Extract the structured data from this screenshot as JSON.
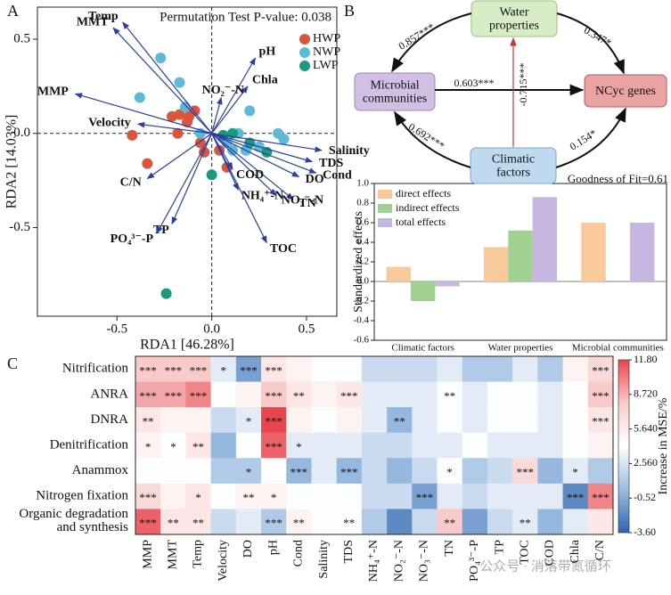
{
  "panel_labels": [
    "A",
    "B",
    "C"
  ],
  "watermark": "公众号 · 消落带氮循环",
  "diagram": {
    "nodes": [
      {
        "label": "Water properties",
        "color": "#d9ecc8",
        "stroke": "#9cbf80"
      },
      {
        "label": "Microbial communities",
        "color": "#d2bfe4",
        "stroke": "#9e86bd"
      },
      {
        "label": "NCyc genes",
        "color": "#e9a3a3",
        "stroke": "#b35e5e"
      },
      {
        "label": "Climatic factors",
        "color": "#bfd9ef",
        "stroke": "#7ea7cc"
      }
    ],
    "edges": [
      {
        "label": "0.857***",
        "color": "#111111"
      },
      {
        "label": "0.347*",
        "color": "#111111"
      },
      {
        "label": "0.603***",
        "color": "#111111"
      },
      {
        "label": "-0.715***",
        "color": "#c0392b"
      },
      {
        "label": "0.692***",
        "color": "#111111"
      },
      {
        "label": "0.154*",
        "color": "#111111"
      }
    ]
  },
  "chart_data": [
    {
      "type": "biplot",
      "title": "Permutation Test P-value: 0.038",
      "x_label": "RDA1 [46.28%]",
      "y_label": "RDA2 [14.03%]",
      "xlim": [
        -0.92,
        0.66
      ],
      "ylim": [
        -0.97,
        0.67
      ],
      "xticks": [
        -0.5,
        {
          "value": 0,
          "label": "0.0"
        },
        0.5
      ],
      "yticks": [
        -0.5,
        {
          "value": 0,
          "label": "0.0"
        },
        0.5
      ],
      "zero_lines": true,
      "legend": "top-right",
      "series": [
        {
          "name": "HWP",
          "color": "#d9553c",
          "x": [
            -0.42,
            -0.34,
            -0.21,
            -0.17,
            -0.13,
            -0.18,
            -0.12,
            -0.09,
            -0.06,
            -0.04,
            0.04,
            0.08
          ],
          "y": [
            -0.01,
            -0.16,
            0.09,
            0.1,
            0.06,
            0.0,
            0.09,
            0.12,
            -0.05,
            -0.1,
            -0.09,
            -0.18
          ]
        },
        {
          "name": "NWP",
          "color": "#5cbad6",
          "x": [
            -0.27,
            -0.17,
            -0.38,
            -0.14,
            -0.06,
            0.08,
            0.14,
            0.18,
            0.25,
            0.35,
            0.38,
            0.2,
            0.11
          ],
          "y": [
            0.4,
            0.27,
            0.19,
            0.14,
            0.0,
            -0.05,
            0.0,
            -0.09,
            -0.07,
            0.0,
            -0.03,
            0.12,
            -0.09
          ]
        },
        {
          "name": "LWP",
          "color": "#1a9a7c",
          "x": [
            -0.24,
            0.0,
            0.29,
            0.2,
            0.11,
            0.06
          ],
          "y": [
            -0.85,
            -0.22,
            -0.1,
            -0.05,
            0.0,
            -0.01
          ]
        }
      ],
      "vectors": {
        "color": "#2b3ea8",
        "labels": [
          "Temp",
          "MMT",
          "MMP",
          "Velocity",
          "pH",
          "Chla",
          "NO₂⁻-N",
          "Salinity",
          "TDS",
          "Cond",
          "DO",
          "TN",
          "NO₃⁻-N",
          "NH₄⁺-N",
          "COD",
          "TOC",
          "C/N",
          "TP",
          "PO₄³⁻-P"
        ],
        "x": [
          -0.47,
          -0.52,
          -0.72,
          -0.39,
          0.23,
          0.19,
          0.05,
          0.58,
          0.53,
          0.55,
          0.46,
          0.43,
          0.34,
          0.14,
          0.11,
          0.29,
          -0.34,
          -0.21,
          -0.29
        ],
        "y": [
          0.59,
          0.56,
          0.21,
          0.05,
          0.4,
          0.25,
          0.19,
          -0.09,
          -0.15,
          -0.21,
          -0.23,
          -0.35,
          -0.33,
          -0.3,
          -0.19,
          -0.58,
          -0.24,
          -0.48,
          -0.53
        ]
      }
    },
    {
      "type": "bar",
      "title": "Goodness of Fit=0.61",
      "y_label": "Standardized effects",
      "categories": [
        "Climatic factors",
        "Water properties",
        "Microbial communities"
      ],
      "series": [
        {
          "name": "direct effects",
          "color": "#f9c99c",
          "values": [
            0.15,
            0.35,
            0.6
          ]
        },
        {
          "name": "indirect effects",
          "color": "#a0d191",
          "values": [
            -0.2,
            0.52,
            null
          ]
        },
        {
          "name": "total effects",
          "color": "#c6b6e1",
          "values": [
            -0.05,
            0.86,
            0.6
          ]
        }
      ],
      "ylim": [
        -0.6,
        1.0
      ],
      "yticks": [
        -0.6,
        -0.4,
        -0.2,
        {
          "value": 0,
          "label": "0.0"
        },
        0.2,
        0.4,
        0.6,
        0.8,
        {
          "value": 1.0,
          "label": "1.0"
        }
      ],
      "zero_line": true,
      "legend": "top-left"
    },
    {
      "type": "heatmap",
      "rows": [
        "Nitrification",
        "ANRA",
        "DNRA",
        "Denitrification",
        "Anammox",
        "Nitrogen fixation",
        "Organic degradation and synthesis"
      ],
      "columns": [
        "MMP",
        "MMT",
        "Temp",
        "Velocity",
        "DO",
        "pH",
        "Cond",
        "Salinity",
        "TDS",
        "NH₄⁺-N",
        "NO₂⁻-N",
        "NO₃⁻-N",
        "TN",
        "PO₄³⁻-P",
        "TP",
        "TOC",
        "COD",
        "Chla",
        "C/N"
      ],
      "values": [
        [
          8,
          8,
          8,
          3,
          -1,
          6,
          5,
          4,
          4,
          2,
          2,
          2,
          3,
          1,
          1,
          3,
          1,
          5,
          7
        ],
        [
          9,
          9,
          10,
          4,
          5,
          8,
          6,
          5,
          6,
          3,
          3,
          3,
          4,
          3,
          4,
          4,
          3,
          4,
          8
        ],
        [
          6,
          5,
          5,
          2,
          3,
          11.8,
          5,
          4,
          5,
          3,
          0,
          3,
          4,
          3,
          4,
          4,
          3,
          4,
          6
        ],
        [
          5,
          4,
          6,
          0,
          4,
          11,
          3,
          3,
          3,
          2,
          2,
          3,
          3,
          4,
          3,
          3,
          3,
          4,
          5
        ],
        [
          4,
          4,
          4,
          1,
          1,
          4,
          0,
          3,
          0,
          2,
          0,
          2,
          4,
          1,
          2,
          7,
          0,
          3,
          1
        ],
        [
          7,
          5,
          6,
          4,
          5,
          5,
          4,
          4,
          4,
          2,
          2,
          -1,
          3,
          2,
          3,
          3,
          3,
          -2,
          10
        ],
        [
          11,
          6,
          6,
          2,
          3,
          1,
          5,
          4,
          4,
          1,
          -2,
          2,
          8,
          -1,
          2,
          3,
          0,
          3,
          6
        ]
      ],
      "significance": [
        [
          "***",
          "***",
          "***",
          "*",
          "***",
          "***",
          null,
          null,
          null,
          null,
          null,
          null,
          null,
          null,
          null,
          null,
          null,
          null,
          "***"
        ],
        [
          "***",
          "***",
          "***",
          null,
          null,
          "***",
          "**",
          null,
          "***",
          null,
          null,
          null,
          "**",
          null,
          null,
          null,
          null,
          null,
          "***"
        ],
        [
          "**",
          null,
          null,
          null,
          "*",
          "***",
          null,
          null,
          null,
          null,
          "**",
          null,
          null,
          null,
          null,
          null,
          null,
          null,
          "***"
        ],
        [
          "*",
          "*",
          "**",
          null,
          null,
          "***",
          "*",
          null,
          null,
          null,
          null,
          null,
          null,
          null,
          null,
          null,
          null,
          null,
          null
        ],
        [
          null,
          null,
          null,
          null,
          "*",
          null,
          "***",
          null,
          "***",
          null,
          null,
          null,
          "*",
          null,
          null,
          "***",
          null,
          "*",
          null
        ],
        [
          "***",
          null,
          "*",
          null,
          "**",
          "*",
          null,
          null,
          null,
          null,
          null,
          "***",
          null,
          null,
          null,
          null,
          null,
          "***",
          "***"
        ],
        [
          "***",
          "**",
          "**",
          null,
          null,
          "***",
          "**",
          null,
          "**",
          null,
          null,
          null,
          "**",
          null,
          null,
          "**",
          null,
          null,
          null
        ]
      ],
      "zlim": [
        -3.6,
        11.8
      ],
      "zticks": [
        {
          "value": 11.8,
          "label": "11.80"
        },
        {
          "value": 8.72,
          "label": "8.720"
        },
        {
          "value": 5.64,
          "label": "5.640"
        },
        {
          "value": 2.56,
          "label": "2.560"
        },
        -0.52,
        {
          "value": -3.6,
          "label": "-3.60"
        }
      ],
      "colorbar_label": "Increase in MSE/%",
      "colors": [
        "#2f64ad",
        "#9dbde1",
        "#ffffff",
        "#f9cccc",
        "#e8464e"
      ]
    }
  ]
}
